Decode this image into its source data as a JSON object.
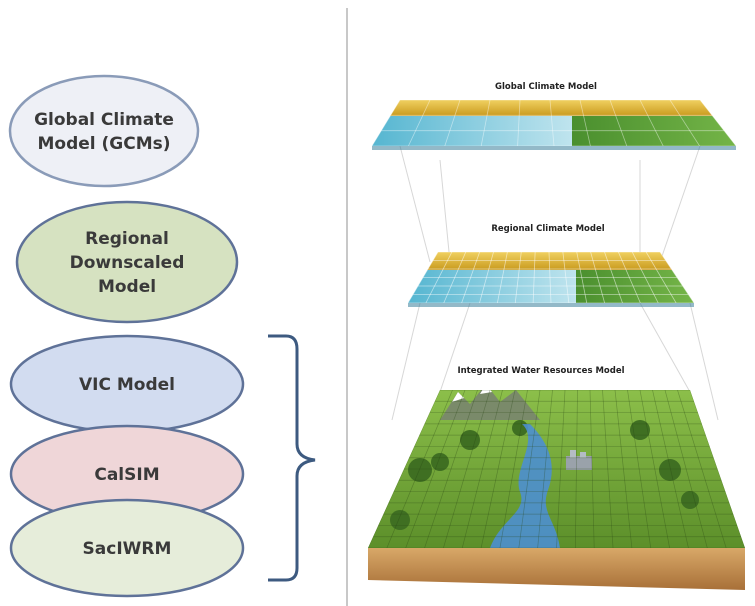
{
  "left_models": [
    {
      "lines": [
        "Global Climate",
        "Model (GCMs)"
      ],
      "fill": "#eef0f6",
      "stroke": "#8a9bb8"
    },
    {
      "lines": [
        "Regional",
        "Downscaled",
        "Model"
      ],
      "fill": "#d6e2c1",
      "stroke": "#5f7298"
    },
    {
      "lines": [
        "VIC Model"
      ],
      "fill": "#d2dcf0",
      "stroke": "#5f7298"
    },
    {
      "lines": [
        "CalSIM"
      ],
      "fill": "#efd6d8",
      "stroke": "#5f7298"
    },
    {
      "lines": [
        "SacIWRM"
      ],
      "fill": "#e6edda",
      "stroke": "#5f7298"
    }
  ],
  "layers": {
    "global": {
      "label": "Global Climate Model"
    },
    "regional": {
      "label": "Regional Climate Model"
    },
    "water": {
      "label": "Integrated Water Resources Model"
    }
  },
  "colors": {
    "bracket": "#3d5a80",
    "divider": "#c8c8c8",
    "yellow": "#e0b92c",
    "cyan": "#6cc3d9",
    "green": "#5c9c3a",
    "ground": "#7fae3f",
    "soil": "#c9955a",
    "river": "#4d8fd0"
  }
}
